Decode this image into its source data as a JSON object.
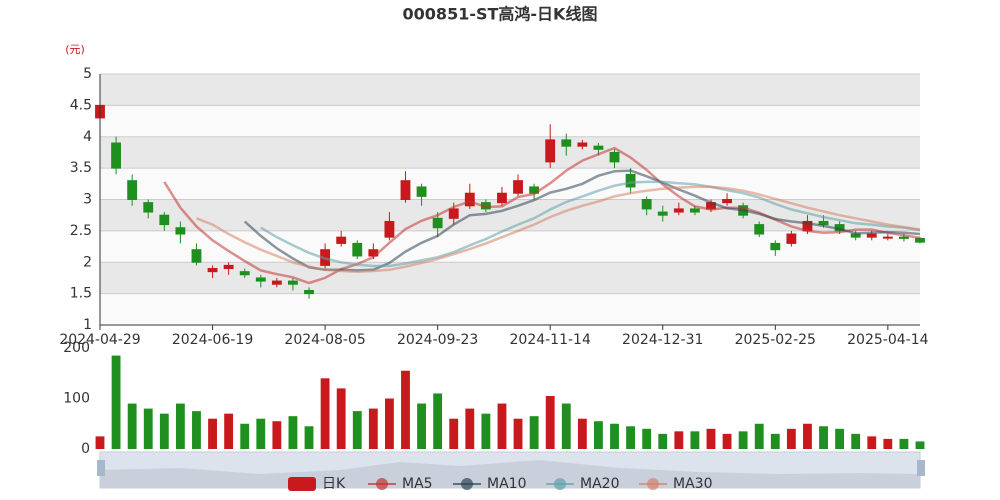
{
  "chart_data": {
    "type": "candlestick",
    "title": "000851-ST高鸿-日K线图",
    "y_unit": "(元)",
    "categories": [
      "2024-04-29",
      null,
      null,
      null,
      null,
      null,
      null,
      "2024-06-19",
      null,
      null,
      null,
      null,
      null,
      null,
      "2024-08-05",
      null,
      null,
      null,
      null,
      null,
      null,
      "2024-09-23",
      null,
      null,
      null,
      null,
      null,
      null,
      "2024-11-14",
      null,
      null,
      null,
      null,
      null,
      null,
      "2024-12-31",
      null,
      null,
      null,
      null,
      null,
      null,
      "2025-02-25",
      null,
      null,
      null,
      null,
      null,
      null,
      "2025-04-14",
      null,
      null
    ],
    "candles": {
      "name": "日K",
      "up_color": "#c8191e",
      "down_color": "#1f8f1f",
      "values": [
        [
          4.3,
          4.5,
          4.2,
          4.6
        ],
        [
          3.9,
          3.5,
          3.4,
          4.0
        ],
        [
          3.3,
          3.0,
          2.9,
          3.4
        ],
        [
          2.95,
          2.8,
          2.7,
          3.0
        ],
        [
          2.75,
          2.6,
          2.5,
          2.8
        ],
        [
          2.55,
          2.45,
          2.3,
          2.65
        ],
        [
          2.2,
          2.0,
          1.95,
          2.3
        ],
        [
          1.85,
          1.9,
          1.75,
          1.95
        ],
        [
          1.9,
          1.95,
          1.8,
          2.0
        ],
        [
          1.85,
          1.8,
          1.75,
          1.9
        ],
        [
          1.75,
          1.7,
          1.6,
          1.8
        ],
        [
          1.65,
          1.7,
          1.6,
          1.75
        ],
        [
          1.7,
          1.65,
          1.55,
          1.75
        ],
        [
          1.55,
          1.5,
          1.42,
          1.6
        ],
        [
          1.95,
          2.2,
          1.9,
          2.3
        ],
        [
          2.3,
          2.4,
          2.25,
          2.5
        ],
        [
          2.3,
          2.1,
          2.05,
          2.35
        ],
        [
          2.1,
          2.2,
          2.05,
          2.3
        ],
        [
          2.4,
          2.65,
          2.35,
          2.8
        ],
        [
          3.0,
          3.3,
          2.95,
          3.45
        ],
        [
          3.2,
          3.05,
          2.9,
          3.25
        ],
        [
          2.7,
          2.55,
          2.4,
          2.8
        ],
        [
          2.7,
          2.85,
          2.6,
          2.95
        ],
        [
          2.9,
          3.1,
          2.85,
          3.25
        ],
        [
          2.95,
          2.85,
          2.8,
          3.0
        ],
        [
          2.95,
          3.1,
          2.9,
          3.2
        ],
        [
          3.1,
          3.3,
          3.05,
          3.4
        ],
        [
          3.2,
          3.1,
          3.0,
          3.25
        ],
        [
          3.6,
          3.95,
          3.5,
          4.2
        ],
        [
          3.95,
          3.85,
          3.7,
          4.05
        ],
        [
          3.85,
          3.9,
          3.8,
          3.95
        ],
        [
          3.85,
          3.8,
          3.7,
          3.9
        ],
        [
          3.75,
          3.6,
          3.5,
          3.8
        ],
        [
          3.4,
          3.2,
          3.1,
          3.5
        ],
        [
          3.0,
          2.85,
          2.75,
          3.05
        ],
        [
          2.8,
          2.75,
          2.65,
          2.9
        ],
        [
          2.8,
          2.85,
          2.75,
          2.95
        ],
        [
          2.85,
          2.8,
          2.75,
          2.9
        ],
        [
          2.85,
          2.95,
          2.8,
          3.0
        ],
        [
          2.95,
          3.0,
          2.9,
          3.1
        ],
        [
          2.9,
          2.75,
          2.7,
          2.95
        ],
        [
          2.6,
          2.45,
          2.4,
          2.65
        ],
        [
          2.3,
          2.2,
          2.1,
          2.35
        ],
        [
          2.3,
          2.45,
          2.25,
          2.5
        ],
        [
          2.5,
          2.65,
          2.45,
          2.75
        ],
        [
          2.65,
          2.6,
          2.55,
          2.75
        ],
        [
          2.6,
          2.5,
          2.45,
          2.65
        ],
        [
          2.45,
          2.4,
          2.35,
          2.5
        ],
        [
          2.4,
          2.45,
          2.35,
          2.5
        ],
        [
          2.4,
          2.4,
          2.35,
          2.45
        ],
        [
          2.4,
          2.38,
          2.33,
          2.45
        ],
        [
          2.38,
          2.32,
          2.3,
          2.4
        ]
      ]
    },
    "series": [
      {
        "name": "MA5",
        "color": "#c23531",
        "values": [
          null,
          null,
          null,
          null,
          3.28,
          2.87,
          2.57,
          2.35,
          2.18,
          2.02,
          1.87,
          1.81,
          1.76,
          1.67,
          1.75,
          1.89,
          1.97,
          2.08,
          2.31,
          2.53,
          2.66,
          2.75,
          2.88,
          2.97,
          2.88,
          2.89,
          3.04,
          3.09,
          3.26,
          3.46,
          3.62,
          3.72,
          3.82,
          3.67,
          3.47,
          3.24,
          3.05,
          2.89,
          2.84,
          2.87,
          2.87,
          2.79,
          2.68,
          2.57,
          2.5,
          2.47,
          2.48,
          2.52,
          2.52,
          2.47,
          2.43,
          2.39
        ]
      },
      {
        "name": "MA10",
        "color": "#2f4554",
        "values": [
          null,
          null,
          null,
          null,
          null,
          null,
          null,
          null,
          null,
          2.65,
          2.42,
          2.22,
          2.06,
          1.92,
          1.88,
          1.88,
          1.87,
          1.88,
          1.99,
          2.17,
          2.31,
          2.42,
          2.6,
          2.75,
          2.77,
          2.82,
          2.9,
          2.99,
          3.11,
          3.17,
          3.25,
          3.38,
          3.45,
          3.46,
          3.37,
          3.27,
          3.16,
          3.06,
          2.95,
          2.86,
          2.83,
          2.77,
          2.69,
          2.65,
          2.62,
          2.58,
          2.53,
          2.46,
          2.47,
          2.48,
          2.47,
          2.45
        ]
      },
      {
        "name": "MA20",
        "color": "#61a0a8",
        "values": [
          null,
          null,
          null,
          null,
          null,
          null,
          null,
          null,
          null,
          null,
          2.55,
          2.4,
          2.27,
          2.15,
          2.06,
          2.0,
          1.96,
          1.94,
          1.94,
          1.98,
          2.03,
          2.08,
          2.16,
          2.27,
          2.37,
          2.49,
          2.6,
          2.7,
          2.84,
          2.96,
          3.05,
          3.14,
          3.22,
          3.27,
          3.28,
          3.28,
          3.26,
          3.24,
          3.2,
          3.15,
          3.1,
          3.03,
          2.93,
          2.84,
          2.78,
          2.72,
          2.67,
          2.62,
          2.6,
          2.57,
          2.55,
          2.51
        ]
      },
      {
        "name": "MA30",
        "color": "#d48265",
        "values": [
          null,
          null,
          null,
          null,
          null,
          null,
          2.7,
          2.6,
          2.45,
          2.32,
          2.2,
          2.1,
          2.0,
          1.93,
          1.88,
          1.86,
          1.85,
          1.86,
          1.88,
          1.93,
          1.99,
          2.05,
          2.13,
          2.21,
          2.3,
          2.4,
          2.5,
          2.6,
          2.72,
          2.82,
          2.9,
          2.97,
          3.05,
          3.1,
          3.14,
          3.17,
          3.19,
          3.2,
          3.2,
          3.18,
          3.14,
          3.08,
          3.01,
          2.94,
          2.87,
          2.81,
          2.75,
          2.7,
          2.65,
          2.6,
          2.56,
          2.52
        ]
      }
    ],
    "ylim": [
      1,
      5
    ],
    "yticks": [
      1,
      1.5,
      2,
      2.5,
      3,
      3.5,
      4,
      4.5,
      5
    ],
    "grid": true,
    "volume": {
      "values": [
        25,
        185,
        90,
        80,
        70,
        90,
        75,
        60,
        70,
        50,
        60,
        55,
        65,
        45,
        140,
        120,
        75,
        80,
        100,
        155,
        90,
        110,
        60,
        80,
        70,
        90,
        60,
        65,
        105,
        90,
        60,
        55,
        50,
        45,
        40,
        30,
        35,
        35,
        40,
        30,
        35,
        50,
        30,
        40,
        50,
        45,
        40,
        30,
        25,
        20,
        20,
        15
      ],
      "ylim": [
        0,
        200
      ],
      "yticks": [
        0,
        100,
        200
      ]
    }
  }
}
